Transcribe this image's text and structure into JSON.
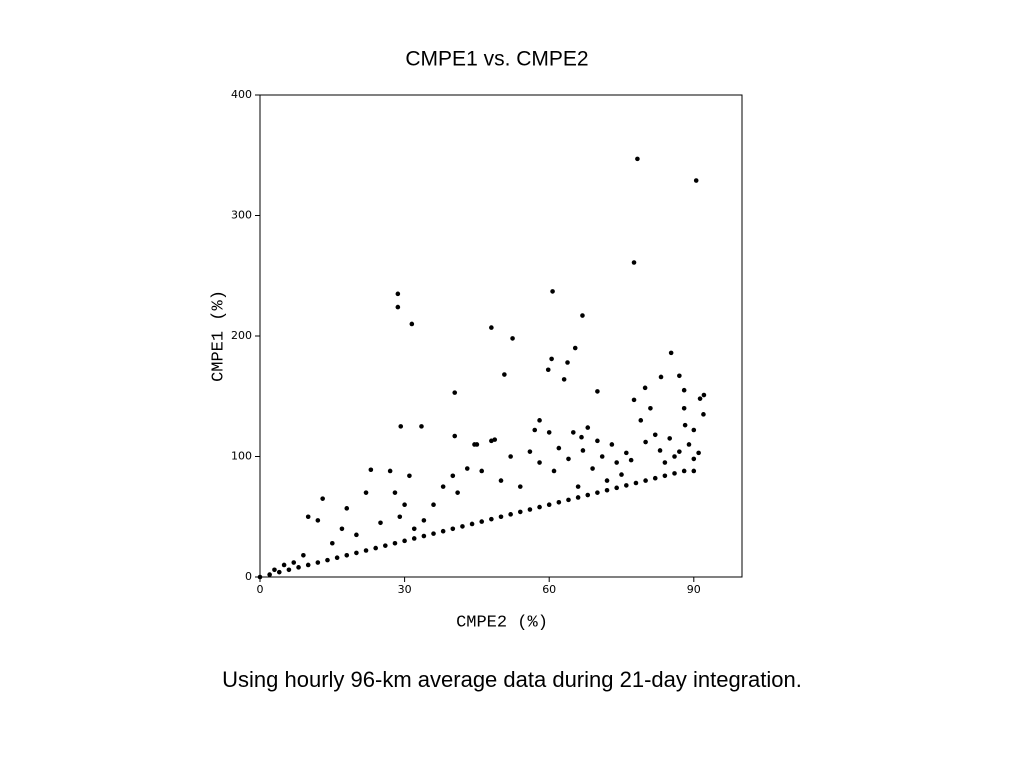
{
  "chart_data": {
    "type": "scatter",
    "title": "CMPE1 vs. CMPE2",
    "x_label": "CMPE2 (%)",
    "y_label": "CMPE1 (%)",
    "caption": "Using hourly 96-km average data during 21-day integration.",
    "color": "#000000",
    "xlim": [
      0,
      100
    ],
    "ylim": [
      0,
      400
    ],
    "xticks": [
      0,
      30,
      60,
      90
    ],
    "yticks": [
      0,
      100,
      200,
      300,
      400
    ],
    "x": [
      0,
      2,
      4,
      6,
      8,
      10,
      12,
      14,
      16,
      18,
      20,
      22,
      24,
      26,
      28,
      30,
      32,
      34,
      36,
      38,
      40,
      42,
      44,
      46,
      48,
      50,
      52,
      54,
      56,
      58,
      60,
      62,
      64,
      66,
      68,
      70,
      72,
      74,
      76,
      78,
      80,
      82,
      84,
      86,
      88,
      90,
      3,
      5,
      7,
      9,
      10,
      12,
      13,
      15,
      17,
      18,
      20,
      22,
      23,
      25,
      27,
      28,
      29,
      30,
      31,
      32,
      34,
      36,
      38,
      40,
      41,
      43,
      45,
      46,
      48,
      50,
      52,
      54,
      56,
      57,
      58,
      60,
      61,
      62,
      64,
      65,
      66,
      67,
      68,
      69,
      70,
      71,
      72,
      73,
      74,
      75,
      76,
      77,
      79,
      80,
      81,
      82,
      83,
      84,
      85,
      86,
      87,
      88,
      89,
      90,
      91,
      92,
      78.3,
      90.5,
      77.6,
      28.6,
      28.6,
      31.5,
      60.7,
      48,
      52.4,
      66.9,
      85.3,
      65.4,
      59.8,
      60.5,
      63.8,
      63.1,
      50.7,
      40.4,
      70,
      92.1,
      91.3,
      87,
      83.2,
      79.9,
      88,
      77.6,
      29.2,
      33.5,
      58,
      40.4,
      66.7,
      90,
      88.2,
      48.7,
      44.5
    ],
    "values": [
      0,
      2,
      4,
      6,
      8,
      10,
      12,
      14,
      16,
      18,
      20,
      22,
      24,
      26,
      28,
      30,
      32,
      34,
      36,
      38,
      40,
      42,
      44,
      46,
      48,
      50,
      52,
      54,
      56,
      58,
      60,
      62,
      64,
      66,
      68,
      70,
      72,
      74,
      76,
      78,
      80,
      82,
      84,
      86,
      88,
      88,
      6,
      10,
      12,
      18,
      50,
      47,
      65,
      28,
      40,
      57,
      35,
      70,
      89,
      45,
      88,
      70,
      50,
      60,
      84,
      40,
      47,
      60,
      75,
      84,
      70,
      90,
      110,
      88,
      113,
      80,
      100,
      75,
      104,
      122,
      95,
      120,
      88,
      107,
      98,
      120,
      75,
      105,
      124,
      90,
      113,
      100,
      80,
      110,
      95,
      85,
      103,
      97,
      130,
      112,
      140,
      118,
      105,
      95,
      115,
      100,
      104,
      140,
      110,
      98,
      103,
      135,
      347,
      329,
      261,
      235,
      224,
      210,
      237,
      207,
      198,
      217,
      186,
      190,
      172,
      181,
      178,
      164,
      168,
      153,
      154,
      151,
      148,
      167,
      166,
      157,
      155,
      147,
      125,
      125,
      130,
      117,
      116,
      122,
      126,
      114,
      110
    ]
  }
}
